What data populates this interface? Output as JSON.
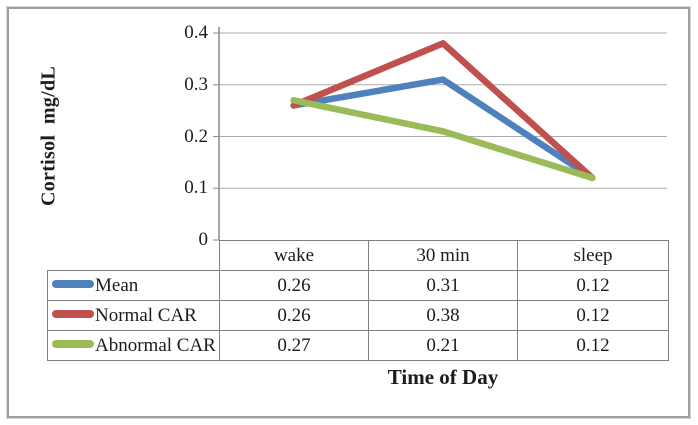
{
  "chart_data": {
    "type": "line",
    "title": "",
    "categories": [
      "wake",
      "30 min",
      "sleep"
    ],
    "series": [
      {
        "name": "Mean",
        "color": "#4F81BD",
        "values": [
          0.26,
          0.31,
          0.12
        ]
      },
      {
        "name": "Normal CAR",
        "color": "#C0504D",
        "values": [
          0.26,
          0.38,
          0.12
        ]
      },
      {
        "name": "Abnormal CAR",
        "color": "#9BBB59",
        "values": [
          0.27,
          0.21,
          0.12
        ]
      }
    ],
    "xlabel": "Time of Day",
    "ylabel": "Cortisol  mg/dL",
    "ylim": [
      0,
      0.4
    ],
    "yticks": [
      0,
      0.1,
      0.2,
      0.3,
      0.4
    ],
    "ytick_labels": [
      "0",
      "0.1",
      "0.2",
      "0.3",
      "0.4"
    ],
    "grid": true,
    "legend_position": "left-of-data-table",
    "data_table": true
  },
  "colors": {
    "gridline": "#ababab",
    "axis": "#8a8a8a",
    "table_border": "#7f7f7f",
    "frame": "#9e9e9e",
    "text": "#1c1c1c"
  }
}
